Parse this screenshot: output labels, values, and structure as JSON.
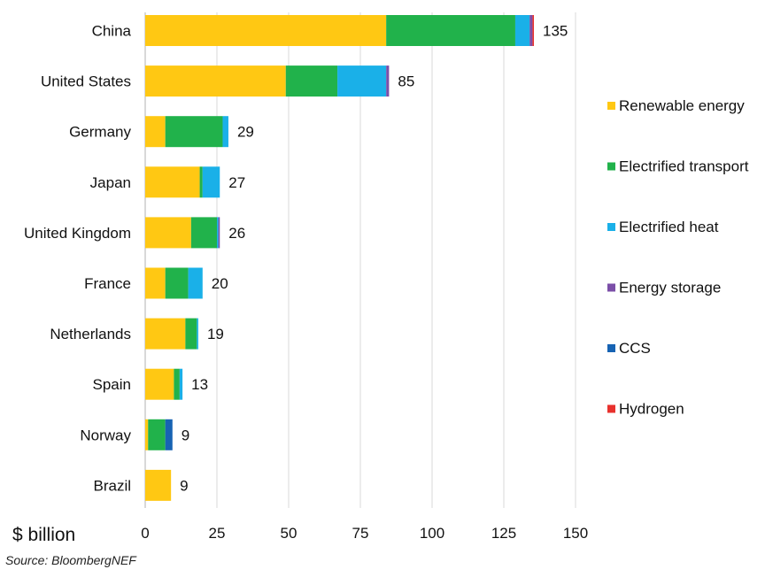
{
  "chart_data": {
    "type": "bar",
    "orientation": "horizontal",
    "stacked": true,
    "categories": [
      "China",
      "United States",
      "Germany",
      "Japan",
      "United Kingdom",
      "France",
      "Netherlands",
      "Spain",
      "Norway",
      "Brazil"
    ],
    "series": [
      {
        "name": "Renewable energy",
        "color": "#ffc813",
        "values": [
          84,
          49,
          7,
          19,
          16,
          7,
          14,
          10,
          1,
          9
        ]
      },
      {
        "name": "Electrified transport",
        "color": "#21b24b",
        "values": [
          45,
          18,
          20,
          1,
          9,
          8,
          4,
          2,
          6,
          0
        ]
      },
      {
        "name": "Electrified heat",
        "color": "#1ab0e8",
        "values": [
          5,
          17,
          2,
          6,
          0.5,
          5,
          0.5,
          1,
          0,
          0
        ]
      },
      {
        "name": "Energy storage",
        "color": "#7b4fa8",
        "values": [
          1,
          1,
          0,
          0,
          0.5,
          0,
          0,
          0,
          0,
          0
        ]
      },
      {
        "name": "CCS",
        "color": "#1763b3",
        "values": [
          0,
          0,
          0,
          0,
          0,
          0,
          0,
          0,
          2.5,
          0
        ]
      },
      {
        "name": "Hydrogen",
        "color": "#e8312d",
        "values": [
          0.5,
          0,
          0,
          0,
          0,
          0,
          0,
          0,
          0,
          0
        ]
      }
    ],
    "totals": [
      "135",
      "85",
      "29",
      "27",
      "26",
      "20",
      "19",
      "13",
      "9",
      "9"
    ],
    "xlabel": "$ billion",
    "xlim": [
      0,
      150
    ],
    "xticks": [
      "0",
      "25",
      "50",
      "75",
      "100",
      "125",
      "150"
    ],
    "grid": "vertical",
    "legend": "right"
  },
  "source": "Source: BloombergNEF"
}
